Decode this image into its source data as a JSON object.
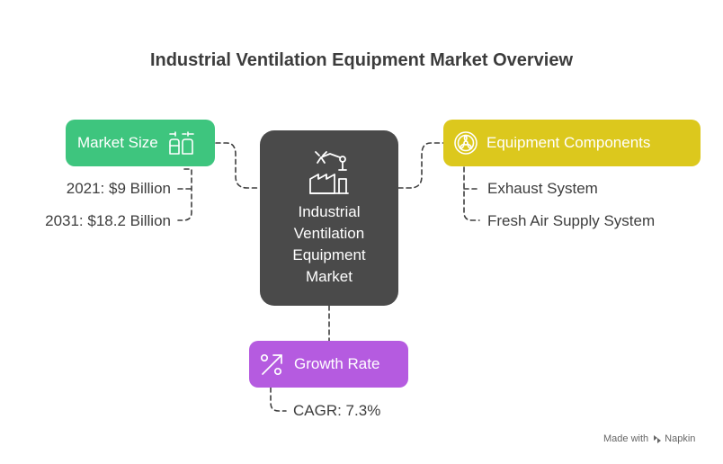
{
  "title": "Industrial Ventilation Equipment Market Overview",
  "center": {
    "lines": [
      "Industrial",
      "Ventilation",
      "Equipment",
      "Market"
    ],
    "icon": "factory-robot-arm-icon"
  },
  "branches": {
    "market_size": {
      "label": "Market Size",
      "icon": "containers-icon",
      "color": "#3ec57e",
      "items": [
        "2021: $9 Billion",
        "2031: $18.2 Billion"
      ]
    },
    "equipment_components": {
      "label": "Equipment Components",
      "icon": "fan-icon",
      "color": "#dcc81d",
      "items": [
        "Exhaust System",
        "Fresh Air Supply System"
      ]
    },
    "growth_rate": {
      "label": "Growth Rate",
      "icon": "percent-arrow-icon",
      "color": "#b55be0",
      "items": [
        "CAGR: 7.3%"
      ]
    }
  },
  "center_color": "#4a4a4a",
  "watermark": {
    "prefix": "Made with",
    "brand": "Napkin"
  }
}
